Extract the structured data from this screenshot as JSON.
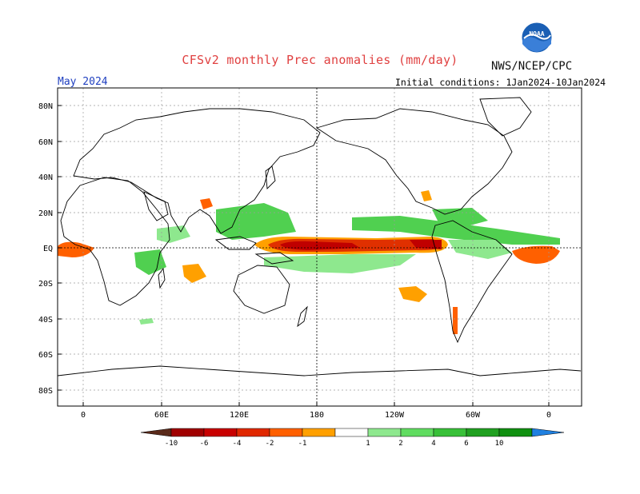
{
  "header": {
    "title": "CFSv2 monthly Prec anomalies (mm/day)",
    "org": "NWS/NCEP/CPC",
    "period": "May 2024",
    "initial_conditions": "Initial conditions: 1Jan2024-10Jan2024",
    "logo_text": "NOAA"
  },
  "colors": {
    "title": "#e04040",
    "period": "#2040c0",
    "dry_strong": "#c00000",
    "dry_mid": "#e03000",
    "dry_light": "#ff6a00",
    "dry_weak": "#ffa000",
    "wet_weak": "#8ee88e",
    "wet_mid": "#50d050",
    "wet_strong": "#20a020"
  },
  "map": {
    "lat_labels": [
      "80N",
      "60N",
      "40N",
      "20N",
      "EQ",
      "20S",
      "40S",
      "60S",
      "80S"
    ],
    "lon_labels": [
      "0",
      "60E",
      "120E",
      "180",
      "120W",
      "60W",
      "0"
    ]
  },
  "colorbar": {
    "labels": [
      "-10",
      "-6",
      "-4",
      "-2",
      "-1",
      "1",
      "2",
      "4",
      "6",
      "10"
    ],
    "colors": [
      "#5a2a1a",
      "#a00000",
      "#c80000",
      "#e02800",
      "#ff6000",
      "#ffa000",
      "#ffffff",
      "#8ee88e",
      "#60dc60",
      "#38c038",
      "#20a020",
      "#109010",
      "#2080e0"
    ]
  }
}
